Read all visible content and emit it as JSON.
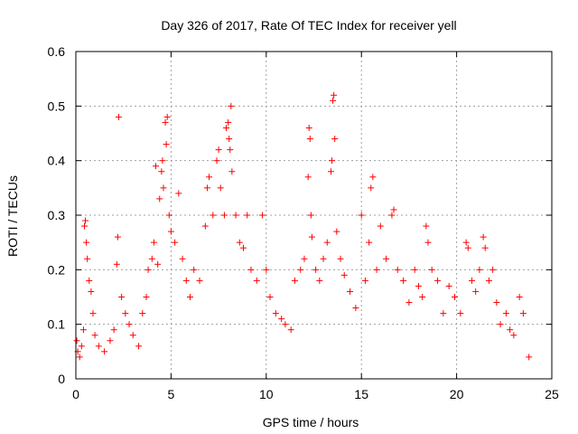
{
  "chart_data": {
    "type": "scatter",
    "title": "Day 326 of 2017, Rate Of TEC Index for receiver yell",
    "xlabel": "GPS time / hours",
    "ylabel": "ROTI / TECUs",
    "xlim": [
      0,
      25
    ],
    "ylim": [
      0,
      0.6
    ],
    "xticks": [
      0,
      5,
      10,
      15,
      20,
      25
    ],
    "xtick_labels": [
      "0",
      "5",
      "10",
      "15",
      "20",
      "25"
    ],
    "yticks": [
      0,
      0.1,
      0.2,
      0.3,
      0.4,
      0.5,
      0.6
    ],
    "ytick_labels": [
      "0",
      "0.1",
      "0.2",
      "0.3",
      "0.4",
      "0.5",
      "0.6"
    ],
    "grid": true,
    "marker": "plus",
    "color": "#ff0000",
    "series": [
      {
        "points": [
          [
            0.05,
            0.07
          ],
          [
            0.1,
            0.05
          ],
          [
            0.2,
            0.04
          ],
          [
            0.3,
            0.06
          ],
          [
            0.4,
            0.09
          ],
          [
            0.45,
            0.28
          ],
          [
            0.5,
            0.29
          ],
          [
            0.55,
            0.25
          ],
          [
            0.6,
            0.22
          ],
          [
            0.7,
            0.18
          ],
          [
            0.8,
            0.16
          ],
          [
            0.9,
            0.12
          ],
          [
            1.0,
            0.08
          ],
          [
            1.2,
            0.06
          ],
          [
            1.5,
            0.05
          ],
          [
            1.8,
            0.07
          ],
          [
            2.0,
            0.09
          ],
          [
            2.15,
            0.21
          ],
          [
            2.2,
            0.26
          ],
          [
            2.25,
            0.48
          ],
          [
            2.4,
            0.15
          ],
          [
            2.6,
            0.12
          ],
          [
            2.8,
            0.1
          ],
          [
            3.0,
            0.08
          ],
          [
            3.3,
            0.06
          ],
          [
            3.5,
            0.12
          ],
          [
            3.7,
            0.15
          ],
          [
            3.8,
            0.2
          ],
          [
            4.0,
            0.22
          ],
          [
            4.1,
            0.25
          ],
          [
            4.2,
            0.39
          ],
          [
            4.3,
            0.21
          ],
          [
            4.4,
            0.33
          ],
          [
            4.5,
            0.38
          ],
          [
            4.55,
            0.4
          ],
          [
            4.6,
            0.35
          ],
          [
            4.7,
            0.47
          ],
          [
            4.75,
            0.43
          ],
          [
            4.8,
            0.48
          ],
          [
            4.9,
            0.3
          ],
          [
            5.0,
            0.27
          ],
          [
            5.2,
            0.25
          ],
          [
            5.4,
            0.34
          ],
          [
            5.6,
            0.22
          ],
          [
            5.8,
            0.18
          ],
          [
            6.0,
            0.15
          ],
          [
            6.2,
            0.2
          ],
          [
            6.5,
            0.18
          ],
          [
            6.8,
            0.28
          ],
          [
            6.9,
            0.35
          ],
          [
            7.0,
            0.37
          ],
          [
            7.2,
            0.3
          ],
          [
            7.4,
            0.4
          ],
          [
            7.5,
            0.42
          ],
          [
            7.6,
            0.35
          ],
          [
            7.8,
            0.3
          ],
          [
            7.9,
            0.46
          ],
          [
            8.0,
            0.47
          ],
          [
            8.05,
            0.44
          ],
          [
            8.1,
            0.42
          ],
          [
            8.15,
            0.5
          ],
          [
            8.2,
            0.38
          ],
          [
            8.4,
            0.3
          ],
          [
            8.6,
            0.25
          ],
          [
            8.8,
            0.24
          ],
          [
            9.0,
            0.3
          ],
          [
            9.2,
            0.2
          ],
          [
            9.5,
            0.18
          ],
          [
            9.8,
            0.3
          ],
          [
            10.0,
            0.2
          ],
          [
            10.2,
            0.15
          ],
          [
            10.5,
            0.12
          ],
          [
            10.8,
            0.11
          ],
          [
            11.0,
            0.1
          ],
          [
            11.3,
            0.09
          ],
          [
            11.5,
            0.18
          ],
          [
            11.8,
            0.2
          ],
          [
            12.0,
            0.22
          ],
          [
            12.2,
            0.37
          ],
          [
            12.25,
            0.46
          ],
          [
            12.3,
            0.44
          ],
          [
            12.35,
            0.3
          ],
          [
            12.4,
            0.26
          ],
          [
            12.6,
            0.2
          ],
          [
            12.8,
            0.18
          ],
          [
            13.0,
            0.22
          ],
          [
            13.2,
            0.25
          ],
          [
            13.4,
            0.38
          ],
          [
            13.45,
            0.4
          ],
          [
            13.5,
            0.51
          ],
          [
            13.55,
            0.52
          ],
          [
            13.6,
            0.44
          ],
          [
            13.7,
            0.27
          ],
          [
            13.9,
            0.22
          ],
          [
            14.1,
            0.19
          ],
          [
            14.4,
            0.16
          ],
          [
            14.7,
            0.13
          ],
          [
            15.0,
            0.3
          ],
          [
            15.2,
            0.18
          ],
          [
            15.4,
            0.25
          ],
          [
            15.5,
            0.35
          ],
          [
            15.6,
            0.37
          ],
          [
            15.8,
            0.2
          ],
          [
            16.0,
            0.28
          ],
          [
            16.3,
            0.22
          ],
          [
            16.6,
            0.3
          ],
          [
            16.7,
            0.31
          ],
          [
            16.9,
            0.2
          ],
          [
            17.2,
            0.18
          ],
          [
            17.5,
            0.14
          ],
          [
            17.8,
            0.2
          ],
          [
            18.0,
            0.17
          ],
          [
            18.2,
            0.15
          ],
          [
            18.4,
            0.28
          ],
          [
            18.5,
            0.25
          ],
          [
            18.7,
            0.2
          ],
          [
            19.0,
            0.18
          ],
          [
            19.3,
            0.12
          ],
          [
            19.6,
            0.17
          ],
          [
            19.9,
            0.15
          ],
          [
            20.2,
            0.12
          ],
          [
            20.5,
            0.25
          ],
          [
            20.6,
            0.24
          ],
          [
            20.8,
            0.18
          ],
          [
            21.0,
            0.16
          ],
          [
            21.2,
            0.2
          ],
          [
            21.4,
            0.26
          ],
          [
            21.5,
            0.24
          ],
          [
            21.7,
            0.18
          ],
          [
            21.9,
            0.2
          ],
          [
            22.1,
            0.14
          ],
          [
            22.3,
            0.1
          ],
          [
            22.6,
            0.12
          ],
          [
            22.8,
            0.09
          ],
          [
            23.0,
            0.08
          ],
          [
            23.3,
            0.15
          ],
          [
            23.5,
            0.12
          ],
          [
            23.8,
            0.04
          ]
        ]
      }
    ]
  }
}
